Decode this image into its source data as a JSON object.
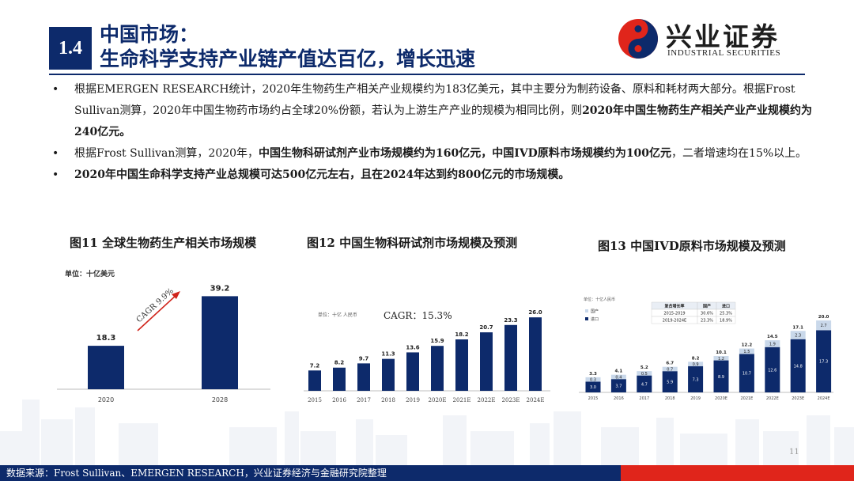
{
  "colors": {
    "navy": "#0d2a6b",
    "bar_navy": "#0d2a6b",
    "accent_red": "#e0251b",
    "light_blue": "#c9d8ea",
    "arrow_red": "#d0241b"
  },
  "header": {
    "section_number": "1.4",
    "title_line1": "中国市场：",
    "title_line2": "生命科学支持产业链产值达百亿，增长迅速"
  },
  "logo": {
    "cn": "兴业证券",
    "en": "INDUSTRIAL SECURITIES",
    "icon": "industrial-securities-logo-icon"
  },
  "bullets": [
    {
      "segments": [
        {
          "text": "根据EMERGEN RESEARCH统计，2020年生物药生产相关产业规模约为183亿美元，其中主要分为制药设备、原料和耗材两大部分。根据Frost Sullivan测算，2020年中国生物药市场约占全球20%份额，若认为上游生产产业的规模为相同比例，则",
          "bold": false
        },
        {
          "text": "2020年中国生物药生产相关产业产业规模约为240亿元。",
          "bold": true
        }
      ]
    },
    {
      "segments": [
        {
          "text": "根据Frost Sullivan测算，2020年，",
          "bold": false
        },
        {
          "text": "中国生物科研试剂产业市场规模约为160亿元，中国IVD原料市场规模约为100亿元",
          "bold": true
        },
        {
          "text": "，二者增速均在15%以上。",
          "bold": false
        }
      ]
    },
    {
      "segments": [
        {
          "text": "2020年中国生命科学支持产业总规模可达500亿元左右，且在2024年达到约800亿元的市场规模。",
          "bold": true
        }
      ]
    }
  ],
  "figures": [
    {
      "title": "图11 全球生物药生产相关市场规模"
    },
    {
      "title": "图12 中国生物科研试剂市场规模及预测"
    },
    {
      "title": "图13 中国IVD原料市场规模及预测"
    }
  ],
  "chart_data": [
    {
      "type": "bar",
      "unit_label": "单位：十亿美元",
      "categories": [
        "2020",
        "2028"
      ],
      "values": [
        18.3,
        39.2
      ],
      "annotation": "CAGR 9.9%",
      "ylim": [
        0,
        42
      ]
    },
    {
      "type": "bar",
      "unit_label": "单位：十亿 人民币",
      "categories": [
        "2015",
        "2016",
        "2017",
        "2018",
        "2019",
        "2020E",
        "2021E",
        "2022E",
        "2023E",
        "2024E"
      ],
      "values": [
        7.2,
        8.2,
        9.7,
        11.3,
        13.6,
        15.9,
        18.2,
        20.7,
        23.3,
        26.0
      ],
      "value_labels": [
        "7.2",
        "8.2",
        "9.7",
        "11.3",
        "13.6",
        "15.9",
        "18.2",
        "20.7",
        "23.3",
        "26.0"
      ],
      "annotation": "CAGR：15.3%",
      "ylim": [
        0,
        28
      ]
    },
    {
      "type": "bar",
      "stacked": true,
      "unit_label": "单位：十亿人民币",
      "categories": [
        "2015",
        "2016",
        "2017",
        "2018",
        "2019",
        "2020E",
        "2021E",
        "2022E",
        "2023E",
        "2024E"
      ],
      "series": [
        {
          "name": "进口",
          "values": [
            3.0,
            3.7,
            4.7,
            5.9,
            7.3,
            8.9,
            10.7,
            12.6,
            14.8,
            17.3
          ],
          "labels": [
            "3.0",
            "3.7",
            "4.7",
            "5.9",
            "7.3",
            "8.9",
            "10.7",
            "12.6",
            "14.8",
            "17.3"
          ]
        },
        {
          "name": "国产",
          "values": [
            0.3,
            0.4,
            0.5,
            0.7,
            0.9,
            1.2,
            1.5,
            1.9,
            2.3,
            2.7
          ],
          "labels": [
            "0.3",
            "0.4",
            "0.5",
            "0.7",
            "0.9",
            "1.2",
            "1.5",
            "1.9",
            "2.3",
            "2.7"
          ]
        }
      ],
      "totals": [
        "3.3",
        "4.1",
        "5.2",
        "6.7",
        "8.2",
        "10.1",
        "12.2",
        "14.5",
        "17.1",
        "20.0"
      ],
      "legend_placement": "top-left",
      "cagr_table": {
        "headers": [
          "复合增长率",
          "国产",
          "进口"
        ],
        "rows": [
          [
            "2015-2019",
            "30.6%",
            "25.3%"
          ],
          [
            "2019-2024E",
            "23.3%",
            "18.9%"
          ]
        ]
      },
      "ylim": [
        0,
        22
      ]
    }
  ],
  "footer": {
    "source": "数据来源：Frost Sullivan、EMERGEN RESEARCH，兴业证券经济与金融研究院整理"
  },
  "page_number": "11"
}
